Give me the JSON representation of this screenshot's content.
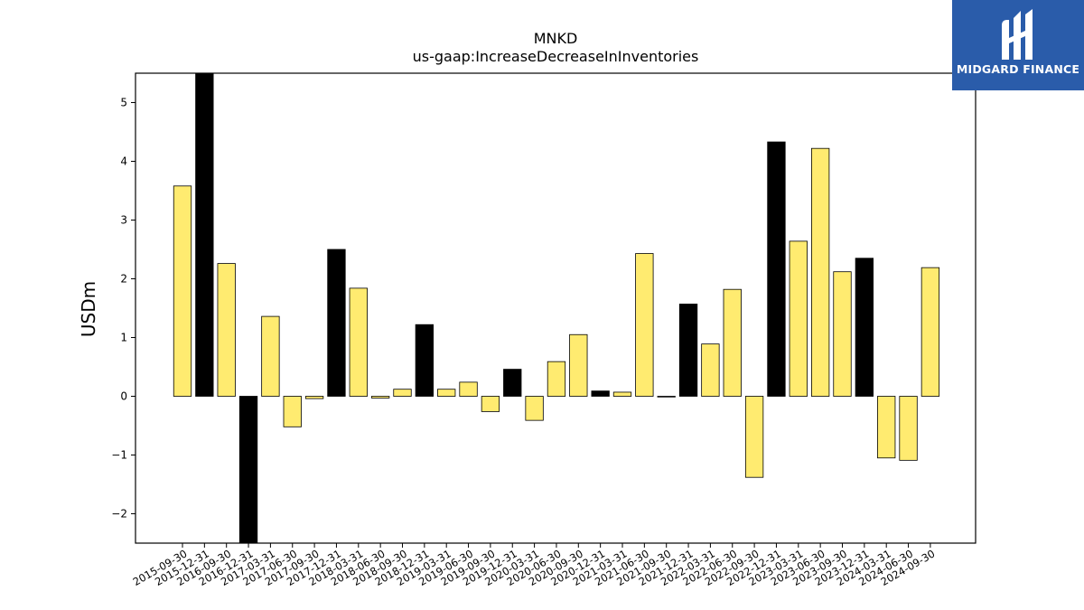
{
  "brand": {
    "name": "MIDGARD FINANCE",
    "color": "#2a5caa"
  },
  "chart_data": {
    "type": "bar",
    "title": "MNKD",
    "subtitle": "us-gaap:IncreaseDecreaseInInventories",
    "xlabel": "",
    "ylabel": "USDm",
    "ylim": [
      -2.5,
      5.5
    ],
    "yticks": [
      -2,
      -1,
      0,
      1,
      2,
      3,
      4,
      5
    ],
    "grid": false,
    "colors": {
      "quarter": "#ffeb70",
      "year_end": "#000000",
      "edge": "#000000"
    },
    "categories": [
      "2015-09-30",
      "2015-12-31",
      "2016-09-30",
      "2016-12-31",
      "2017-03-31",
      "2017-06-30",
      "2017-09-30",
      "2017-12-31",
      "2018-03-31",
      "2018-06-30",
      "2018-09-30",
      "2018-12-31",
      "2019-03-31",
      "2019-06-30",
      "2019-09-30",
      "2019-12-31",
      "2020-03-31",
      "2020-06-30",
      "2020-09-30",
      "2020-12-31",
      "2021-03-31",
      "2021-06-30",
      "2021-09-30",
      "2021-12-31",
      "2022-03-31",
      "2022-06-30",
      "2022-09-30",
      "2022-12-31",
      "2023-03-31",
      "2023-06-30",
      "2023-09-30",
      "2023-12-31",
      "2024-03-31",
      "2024-06-30",
      "2024-09-30"
    ],
    "values": [
      3.58,
      5.55,
      2.26,
      -2.6,
      1.36,
      -0.52,
      -0.04,
      2.5,
      1.84,
      -0.03,
      0.12,
      1.22,
      0.12,
      0.24,
      -0.26,
      0.46,
      -0.41,
      0.59,
      1.05,
      0.09,
      0.07,
      2.43,
      -0.01,
      1.57,
      0.89,
      1.82,
      -1.38,
      4.33,
      2.64,
      4.22,
      2.12,
      2.35,
      -1.05,
      -1.09,
      2.19
    ]
  }
}
